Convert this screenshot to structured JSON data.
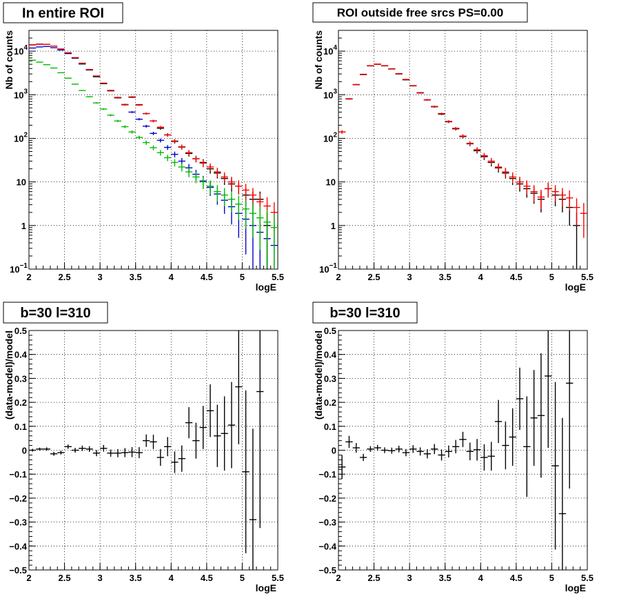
{
  "chart_data": [
    {
      "type": "scatter",
      "title": "In entire ROI",
      "xlabel": "logE",
      "ylabel": "Nb of counts",
      "xlim": [
        2,
        5.5
      ],
      "ylim": [
        0.1,
        30000
      ],
      "yscale": "log",
      "grid": true,
      "x_ticks": [
        "2",
        "2.5",
        "3",
        "3.5",
        "4",
        "4.5",
        "5",
        "5.5"
      ],
      "y_ticks": [
        {
          "value": 0.1,
          "base": "10",
          "exp": "−1"
        },
        {
          "value": 1,
          "base": "1",
          "exp": ""
        },
        {
          "value": 10,
          "base": "10",
          "exp": ""
        },
        {
          "value": 100,
          "base": "10",
          "exp": "2"
        },
        {
          "value": 1000,
          "base": "10",
          "exp": "3"
        },
        {
          "value": 10000,
          "base": "10",
          "exp": "4"
        }
      ],
      "bin_half_width": 0.05,
      "series": [
        {
          "color": "#0000cc",
          "x": [
            2.05,
            2.15,
            2.25,
            2.35,
            2.45,
            2.55,
            2.65,
            2.75,
            2.85,
            2.95,
            3.05,
            3.15,
            3.25,
            3.35,
            3.45,
            3.55,
            3.65,
            3.75,
            3.85,
            3.95,
            4.05,
            4.15,
            4.25,
            4.35,
            4.45,
            4.55,
            4.65,
            4.75,
            4.85,
            4.95,
            5.05,
            5.15,
            5.25,
            5.35,
            5.45
          ],
          "y": [
            11800,
            12500,
            12800,
            12000,
            10600,
            8800,
            6900,
            5100,
            3700,
            2600,
            1800,
            1250,
            860,
            590,
            400,
            275,
            190,
            130,
            90,
            62,
            43,
            30,
            21,
            15,
            10.5,
            7.5,
            5.3,
            3.8,
            2.7,
            1.9,
            1.4,
            1.0,
            0.7,
            0.5,
            0.35
          ]
        },
        {
          "color": "#000000",
          "x": [
            2.05,
            2.15,
            2.25,
            2.35,
            2.45,
            2.55,
            2.65,
            2.75,
            2.85,
            2.95,
            3.05,
            3.15,
            3.25,
            3.35,
            3.45,
            3.55,
            3.65,
            3.75,
            3.85,
            3.95,
            4.05,
            4.15,
            4.25,
            4.35,
            4.45,
            4.55,
            4.65,
            4.75,
            4.85,
            4.95,
            5.05,
            5.15,
            5.25,
            5.35,
            5.45
          ],
          "y": [
            14000,
            14500,
            14300,
            13100,
            11200,
            9100,
            7000,
            5100,
            3750,
            2600,
            1800,
            1230,
            850,
            590,
            890,
            590,
            370,
            250,
            170,
            120,
            85,
            63,
            45,
            34,
            28,
            20,
            16,
            12,
            9,
            8,
            5,
            4,
            4,
            1,
            null
          ]
        },
        {
          "color": "#ff0000",
          "x": [
            2.05,
            2.15,
            2.25,
            2.35,
            2.45,
            2.55,
            2.65,
            2.75,
            2.85,
            2.95,
            3.05,
            3.15,
            3.25,
            3.35,
            3.45,
            3.55,
            3.65,
            3.75,
            3.85,
            3.95,
            4.05,
            4.15,
            4.25,
            4.35,
            4.45,
            4.55,
            4.65,
            4.75,
            4.85,
            4.95,
            5.05,
            5.15,
            5.25,
            5.35,
            5.45
          ],
          "y": [
            13900,
            14400,
            14300,
            13100,
            11200,
            9200,
            7100,
            5300,
            3800,
            2700,
            1850,
            1260,
            870,
            600,
            870,
            580,
            370,
            250,
            180,
            120,
            87,
            64,
            47,
            34,
            27,
            22,
            17,
            13,
            10,
            8,
            6.5,
            5,
            3.5,
            2.8,
            2
          ]
        },
        {
          "color": "#00bb00",
          "x": [
            2.05,
            2.15,
            2.25,
            2.35,
            2.45,
            2.55,
            2.65,
            2.75,
            2.85,
            2.95,
            3.05,
            3.15,
            3.25,
            3.35,
            3.45,
            3.55,
            3.65,
            3.75,
            3.85,
            3.95,
            4.05,
            4.15,
            4.25,
            4.35,
            4.45,
            4.55,
            4.65,
            4.75,
            4.85,
            4.95,
            5.05,
            5.15,
            5.25,
            5.35,
            5.45
          ],
          "y": [
            6200,
            5600,
            4900,
            4100,
            3200,
            2400,
            1750,
            1250,
            900,
            650,
            470,
            340,
            250,
            185,
            140,
            105,
            80,
            61,
            47,
            36,
            28,
            22,
            17,
            13,
            10,
            8,
            6,
            5,
            4,
            3.1,
            2.4,
            1.9,
            1.5,
            1.2,
            0.9
          ]
        }
      ]
    },
    {
      "type": "scatter",
      "title": "ROI outside free srcs PS=0.00",
      "xlabel": "logE",
      "ylabel": "Nb of counts",
      "xlim": [
        2,
        5.5
      ],
      "ylim": [
        0.1,
        30000
      ],
      "yscale": "log",
      "grid": true,
      "x_ticks": [
        "2",
        "2.5",
        "3",
        "3.5",
        "4",
        "4.5",
        "5",
        "5.5"
      ],
      "y_ticks": [
        {
          "value": 0.1,
          "base": "10",
          "exp": "−1"
        },
        {
          "value": 1,
          "base": "1",
          "exp": ""
        },
        {
          "value": 10,
          "base": "10",
          "exp": ""
        },
        {
          "value": 100,
          "base": "10",
          "exp": "2"
        },
        {
          "value": 1000,
          "base": "10",
          "exp": "3"
        },
        {
          "value": 10000,
          "base": "10",
          "exp": "4"
        }
      ],
      "bin_half_width": 0.05,
      "series": [
        {
          "color": "#000000",
          "x": [
            2.05,
            2.15,
            2.25,
            2.35,
            2.45,
            2.55,
            2.65,
            2.75,
            2.85,
            2.95,
            3.05,
            3.15,
            3.25,
            3.35,
            3.45,
            3.55,
            3.65,
            3.75,
            3.85,
            3.95,
            4.05,
            4.15,
            4.25,
            4.35,
            4.45,
            4.55,
            4.65,
            4.75,
            4.85,
            4.95,
            5.05,
            5.15,
            5.25,
            5.35,
            5.45
          ],
          "y": [
            140,
            800,
            1700,
            2900,
            4600,
            5000,
            4600,
            3900,
            3000,
            2200,
            1600,
            1100,
            760,
            530,
            360,
            240,
            165,
            110,
            75,
            52,
            38,
            28,
            21,
            16,
            12,
            9,
            7,
            5.5,
            4,
            7,
            5,
            4,
            2.6,
            1,
            null
          ]
        },
        {
          "color": "#ff0000",
          "x": [
            2.05,
            2.15,
            2.25,
            2.35,
            2.45,
            2.55,
            2.65,
            2.75,
            2.85,
            2.95,
            3.05,
            3.15,
            3.25,
            3.35,
            3.45,
            3.55,
            3.65,
            3.75,
            3.85,
            3.95,
            4.05,
            4.15,
            4.25,
            4.35,
            4.45,
            4.55,
            4.65,
            4.75,
            4.85,
            4.95,
            5.05,
            5.15,
            5.25,
            5.35,
            5.45
          ],
          "y": [
            140,
            810,
            1720,
            2950,
            4650,
            5050,
            4650,
            3950,
            3050,
            2250,
            1620,
            1120,
            770,
            540,
            370,
            245,
            170,
            113,
            77,
            55,
            40,
            30,
            22,
            17,
            13,
            10,
            8,
            6,
            4.5,
            7,
            6,
            5,
            4.3,
            2.6,
            1.9
          ]
        }
      ]
    },
    {
      "type": "scatter",
      "title": "b=30 l=310",
      "xlabel": "logE",
      "ylabel": "(data-model)/model",
      "xlim": [
        2,
        5.5
      ],
      "ylim": [
        -0.5,
        0.5
      ],
      "grid": true,
      "x_ticks": [
        "2",
        "2.5",
        "3",
        "3.5",
        "4",
        "4.5",
        "5",
        "5.5"
      ],
      "y_ticks": [
        "−0.5",
        "−0.4",
        "−0.3",
        "−0.2",
        "−0.1",
        "0",
        "0.1",
        "0.2",
        "0.3",
        "0.4",
        "0.5"
      ],
      "bin_half_width": 0.05,
      "series": [
        {
          "color": "#000000",
          "x": [
            2.05,
            2.15,
            2.25,
            2.35,
            2.45,
            2.55,
            2.65,
            2.75,
            2.85,
            2.95,
            3.05,
            3.15,
            3.25,
            3.35,
            3.45,
            3.55,
            3.65,
            3.75,
            3.85,
            3.95,
            4.05,
            4.15,
            4.25,
            4.35,
            4.45,
            4.55,
            4.65,
            4.75,
            4.85,
            4.95,
            5.05,
            5.15,
            5.25
          ],
          "y": [
            0.0,
            0.005,
            0.005,
            -0.015,
            -0.01,
            0.015,
            0.0,
            0.008,
            0.005,
            -0.012,
            0.008,
            -0.012,
            -0.012,
            -0.01,
            -0.008,
            -0.01,
            0.04,
            0.035,
            -0.03,
            0.015,
            -0.05,
            -0.035,
            0.115,
            0.04,
            0.095,
            0.165,
            0.06,
            0.07,
            0.105,
            0.265,
            -0.09,
            -0.29,
            0.245
          ],
          "err": [
            0.006,
            0.006,
            0.007,
            0.008,
            0.008,
            0.009,
            0.01,
            0.011,
            0.012,
            0.013,
            0.014,
            0.015,
            0.017,
            0.019,
            0.021,
            0.023,
            0.026,
            0.03,
            0.035,
            0.04,
            0.045,
            0.055,
            0.065,
            0.075,
            0.09,
            0.11,
            0.13,
            0.155,
            0.18,
            0.24,
            0.34,
            0.38,
            0.57
          ]
        }
      ]
    },
    {
      "type": "scatter",
      "title": "b=30 l=310",
      "xlabel": "logE",
      "ylabel": "(data-model)/model",
      "xlim": [
        2,
        5.5
      ],
      "ylim": [
        -0.5,
        0.5
      ],
      "grid": true,
      "x_ticks": [
        "2",
        "2.5",
        "3",
        "3.5",
        "4",
        "4.5",
        "5",
        "5.5"
      ],
      "y_ticks": [
        "−0.5",
        "−0.4",
        "−0.3",
        "−0.2",
        "−0.1",
        "0",
        "0.1",
        "0.2",
        "0.3",
        "0.4",
        "0.5"
      ],
      "bin_half_width": 0.05,
      "series": [
        {
          "color": "#000000",
          "x": [
            2.05,
            2.15,
            2.25,
            2.35,
            2.45,
            2.55,
            2.65,
            2.75,
            2.85,
            2.95,
            3.05,
            3.15,
            3.25,
            3.35,
            3.45,
            3.55,
            3.65,
            3.75,
            3.85,
            3.95,
            4.05,
            4.15,
            4.25,
            4.35,
            4.45,
            4.55,
            4.65,
            4.75,
            4.85,
            4.95,
            5.05,
            5.15,
            5.25
          ],
          "y": [
            -0.07,
            0.035,
            0.01,
            -0.03,
            0.005,
            0.01,
            0.0,
            -0.002,
            0.005,
            -0.01,
            0.005,
            -0.005,
            -0.015,
            0.005,
            -0.02,
            -0.005,
            0.015,
            0.045,
            -0.005,
            0.002,
            -0.03,
            -0.025,
            0.12,
            0.02,
            0.055,
            0.215,
            0.015,
            0.135,
            0.145,
            0.31,
            -0.065,
            -0.265,
            0.28
          ],
          "err": [
            0.05,
            0.025,
            0.02,
            0.015,
            0.012,
            0.012,
            0.012,
            0.013,
            0.014,
            0.015,
            0.016,
            0.017,
            0.019,
            0.021,
            0.023,
            0.025,
            0.028,
            0.032,
            0.037,
            0.045,
            0.055,
            0.06,
            0.09,
            0.1,
            0.12,
            0.13,
            0.21,
            0.2,
            0.26,
            0.3,
            0.35,
            0.4,
            0.44
          ]
        }
      ]
    }
  ]
}
